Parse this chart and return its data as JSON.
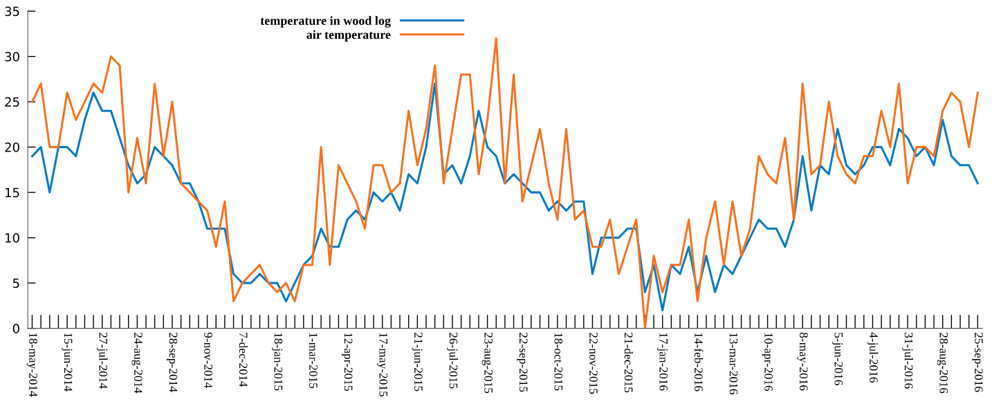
{
  "chart_data": {
    "type": "line",
    "categories": [
      "18-may-2014",
      null,
      null,
      null,
      "15-jun-2014",
      null,
      null,
      null,
      "27-jul-2014",
      null,
      null,
      null,
      "24-aug-2014",
      null,
      null,
      null,
      "28-sep-2014",
      null,
      null,
      null,
      "9-nov-2014",
      null,
      null,
      null,
      "7-dec-2014",
      null,
      null,
      null,
      "18-jan-2015",
      null,
      null,
      null,
      "1-mar-2015",
      null,
      null,
      null,
      "12-apr-2015",
      null,
      null,
      null,
      "17-may-2015",
      null,
      null,
      null,
      "21-jun-2015",
      null,
      null,
      null,
      "26-jul-2015",
      null,
      null,
      null,
      "23-aug-2015",
      null,
      null,
      null,
      "22-sep-2015",
      null,
      null,
      null,
      "18-oct-2015",
      null,
      null,
      null,
      "22-nov-2015",
      null,
      null,
      null,
      "21-dec-2015",
      null,
      null,
      null,
      "17-jan-2016",
      null,
      null,
      null,
      "14-feb-2016",
      null,
      null,
      null,
      "13-mar-2016",
      null,
      null,
      null,
      "10-apr-2016",
      null,
      null,
      null,
      "8-may-2016",
      null,
      null,
      null,
      "5-jun-2016",
      null,
      null,
      null,
      "4-jul-2016",
      null,
      null,
      null,
      "31-jul-2016",
      null,
      null,
      null,
      "28-aug-2016",
      null,
      null,
      null,
      "25-sep-2016"
    ],
    "series": [
      {
        "name": "temperature in wood log",
        "color": "#0a7cc1",
        "values": [
          19,
          20,
          15,
          20,
          20,
          19,
          23,
          26,
          24,
          24,
          21,
          18,
          16,
          17,
          20,
          19,
          18,
          16,
          16,
          14,
          11,
          11,
          11,
          6,
          5,
          5,
          6,
          5,
          5,
          3,
          5,
          7,
          8,
          11,
          9,
          9,
          12,
          13,
          12,
          15,
          14,
          15,
          13,
          17,
          16,
          20,
          27,
          17,
          18,
          16,
          19,
          24,
          20,
          19,
          16,
          17,
          16,
          15,
          15,
          13,
          14,
          13,
          14,
          14,
          6,
          10,
          10,
          10,
          11,
          11,
          4,
          7,
          2,
          7,
          6,
          9,
          4,
          8,
          4,
          7,
          6,
          8,
          10,
          12,
          11,
          11,
          9,
          12,
          19,
          13,
          18,
          17,
          22,
          18,
          17,
          18,
          20,
          20,
          18,
          22,
          21,
          19,
          20,
          18,
          23,
          19,
          18,
          18,
          16
        ]
      },
      {
        "name": "air temperature",
        "color": "#f47321",
        "values": [
          25,
          27,
          20,
          20,
          26,
          23,
          25,
          27,
          26,
          30,
          29,
          15,
          21,
          16,
          27,
          19,
          25,
          16,
          15,
          14,
          13,
          9,
          14,
          3,
          5,
          6,
          7,
          5,
          4,
          5,
          3,
          7,
          7,
          20,
          7,
          18,
          16,
          14,
          11,
          18,
          18,
          15,
          16,
          24,
          18,
          22,
          29,
          16,
          22,
          28,
          28,
          17,
          23,
          32,
          16,
          28,
          14,
          18,
          22,
          16,
          12,
          22,
          12,
          13,
          9,
          9,
          12,
          6,
          9,
          12,
          0,
          8,
          4,
          7,
          7,
          12,
          3,
          10,
          14,
          7,
          14,
          8,
          11,
          19,
          17,
          16,
          21,
          12,
          27,
          17,
          18,
          25,
          19,
          17,
          16,
          19,
          19,
          24,
          20,
          27,
          16,
          20,
          20,
          19,
          24,
          26,
          25,
          20,
          26
        ]
      }
    ],
    "ylim": [
      0,
      35
    ],
    "yticks": [
      0,
      5,
      10,
      15,
      20,
      25,
      30,
      35
    ],
    "legend": "top",
    "line_style": "solid"
  }
}
